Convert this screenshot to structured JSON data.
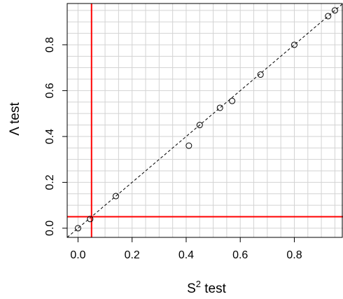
{
  "chart_data": {
    "type": "scatter",
    "title": "",
    "xlabel": {
      "base": "S",
      "sup": "2",
      "rest": " test"
    },
    "ylabel": "Λ test",
    "xlim": [
      -0.04,
      0.98
    ],
    "ylim": [
      -0.04,
      0.98
    ],
    "xticks": [
      0.0,
      0.2,
      0.4,
      0.6,
      0.8
    ],
    "xtick_labels": [
      "0.0",
      "0.2",
      "0.4",
      "0.6",
      "0.8"
    ],
    "yticks": [
      0.0,
      0.2,
      0.4,
      0.6,
      0.8
    ],
    "ytick_labels": [
      "0.0",
      "0.2",
      "0.4",
      "0.6",
      "0.8"
    ],
    "grid": true,
    "grid_step": 0.05,
    "points": [
      {
        "x": 0.0,
        "y": 0.0
      },
      {
        "x": 0.045,
        "y": 0.04
      },
      {
        "x": 0.14,
        "y": 0.14
      },
      {
        "x": 0.41,
        "y": 0.36
      },
      {
        "x": 0.45,
        "y": 0.45
      },
      {
        "x": 0.525,
        "y": 0.525
      },
      {
        "x": 0.57,
        "y": 0.555
      },
      {
        "x": 0.675,
        "y": 0.67
      },
      {
        "x": 0.8,
        "y": 0.8
      },
      {
        "x": 0.925,
        "y": 0.925
      },
      {
        "x": 0.95,
        "y": 0.95
      }
    ],
    "reference_line": {
      "type": "identity",
      "style": "dashed",
      "color": "#000000"
    },
    "threshold_lines": [
      {
        "orientation": "vertical",
        "value": 0.05,
        "color": "#ff0000"
      },
      {
        "orientation": "horizontal",
        "value": 0.05,
        "color": "#ff0000"
      }
    ],
    "colors": {
      "grid": "#d3d3d3",
      "points": "#000000",
      "threshold": "#ff0000"
    }
  }
}
